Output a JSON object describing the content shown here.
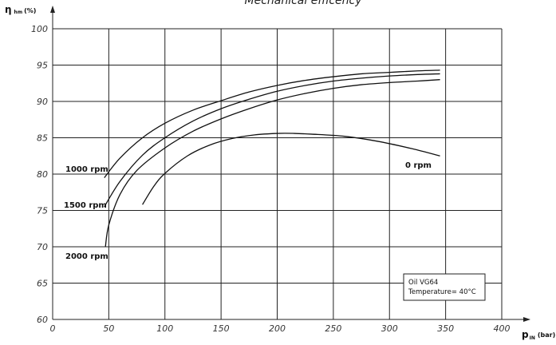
{
  "chart_data": {
    "type": "line",
    "title": "Mechanical efficency",
    "ylabel": {
      "main": "η",
      "sub": "hm",
      "unit": "(%)"
    },
    "xlabel": {
      "main": "p",
      "sub": "IN",
      "unit": "(bar)"
    },
    "xlim": [
      0,
      400
    ],
    "ylim": [
      60,
      100
    ],
    "x_ticks": [
      0,
      50,
      100,
      150,
      200,
      250,
      300,
      350,
      400
    ],
    "y_ticks": [
      60,
      65,
      70,
      75,
      80,
      85,
      90,
      95,
      100
    ],
    "grid": true,
    "line_color": "#111111",
    "grid_color": "#222222",
    "series": [
      {
        "name": "1000 rpm",
        "x": [
          46,
          60,
          80,
          100,
          125,
          150,
          175,
          200,
          225,
          250,
          275,
          300,
          325,
          345
        ],
        "y": [
          79.5,
          82.2,
          85.0,
          87.0,
          88.8,
          90.1,
          91.3,
          92.2,
          92.9,
          93.4,
          93.8,
          94.0,
          94.2,
          94.3
        ]
      },
      {
        "name": "1500 rpm",
        "x": [
          46,
          60,
          80,
          100,
          125,
          150,
          175,
          200,
          225,
          250,
          275,
          300,
          325,
          345
        ],
        "y": [
          75.5,
          79.0,
          82.6,
          85.0,
          87.3,
          89.0,
          90.3,
          91.4,
          92.2,
          92.8,
          93.2,
          93.5,
          93.7,
          93.8
        ]
      },
      {
        "name": "2000 rpm",
        "x": [
          47,
          50,
          60,
          75,
          100,
          125,
          150,
          175,
          200,
          225,
          250,
          275,
          300,
          325,
          345
        ],
        "y": [
          70.0,
          73.0,
          77.2,
          80.5,
          83.6,
          85.9,
          87.6,
          89.0,
          90.2,
          91.1,
          91.8,
          92.3,
          92.6,
          92.8,
          93.0
        ]
      },
      {
        "name": "0 rpm",
        "x": [
          80,
          90,
          100,
          120,
          140,
          160,
          180,
          200,
          215,
          230,
          260,
          290,
          320,
          345
        ],
        "y": [
          75.8,
          78.3,
          80.1,
          82.5,
          84.0,
          84.9,
          85.4,
          85.6,
          85.6,
          85.5,
          85.2,
          84.5,
          83.5,
          82.5
        ]
      }
    ],
    "annotation": {
      "line1": "Oil VG64",
      "line2": "Temperature= 40°C"
    }
  }
}
